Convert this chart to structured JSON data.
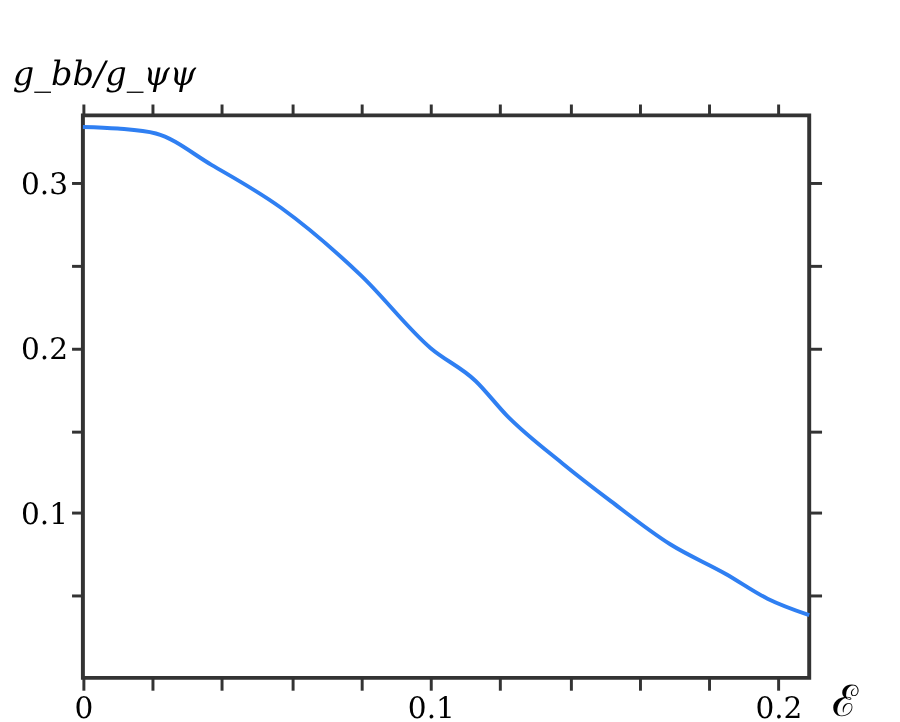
{
  "chart_data": {
    "type": "line",
    "xlabel": "ℰ",
    "ylabel": "g_bb/g_ψψ",
    "x": [
      0,
      0.01,
      0.021,
      0.037,
      0.057,
      0.08,
      0.1,
      0.113,
      0.122,
      0.138,
      0.152,
      0.169,
      0.185,
      0.197,
      0.209
    ],
    "series": [
      {
        "color": "#2f7ff2",
        "values": [
          0.334,
          0.333,
          0.33,
          0.311,
          0.285,
          0.244,
          0.2,
          0.18,
          0.159,
          0.13,
          0.107,
          0.081,
          0.063,
          0.048,
          0.038
        ]
      }
    ],
    "xlim": [
      0,
      0.209
    ],
    "ylim": [
      0,
      0.341
    ],
    "xticks": [
      0,
      {
        "value": 0.02,
        "label": null
      },
      {
        "value": 0.04,
        "label": null
      },
      {
        "value": 0.06,
        "label": null
      },
      {
        "value": 0.08,
        "label": null
      },
      0.1,
      {
        "value": 0.12,
        "label": null
      },
      {
        "value": 0.14,
        "label": null
      },
      {
        "value": 0.16,
        "label": null
      },
      {
        "value": 0.18,
        "label": null
      },
      0.2
    ],
    "yticks": [
      {
        "value": 0.05,
        "label": null
      },
      0.1,
      {
        "value": 0.15,
        "label": null
      },
      0.2,
      {
        "value": 0.25,
        "label": null
      },
      0.3
    ],
    "grid": false,
    "legend": false,
    "marker": "none",
    "line_style": "solid"
  }
}
